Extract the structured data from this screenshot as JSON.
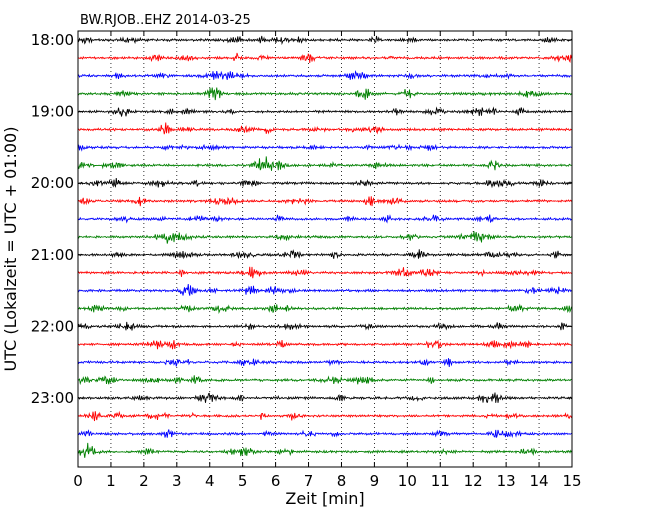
{
  "chart_data": {
    "type": "line",
    "title": "BW.RJOB..EHZ 2014-03-25",
    "xlabel": "Zeit  [min]",
    "ylabel": "UTC (Lokalzeit = UTC + 01:00)",
    "xlim": [
      0,
      15
    ],
    "x_ticks": [
      "0",
      "1",
      "2",
      "3",
      "4",
      "5",
      "6",
      "7",
      "8",
      "9",
      "10",
      "11",
      "12",
      "13",
      "14",
      "15"
    ],
    "y_ticks": [
      "18:00",
      "19:00",
      "20:00",
      "21:00",
      "22:00",
      "23:00"
    ],
    "grid": "vertical dotted",
    "trace_colors": [
      "#000000",
      "#ff0000",
      "#0000ff",
      "#008000"
    ],
    "traces_per_hour": 4,
    "minutes_per_trace": 15,
    "start_time": "18:00",
    "end_time": "24:00"
  }
}
